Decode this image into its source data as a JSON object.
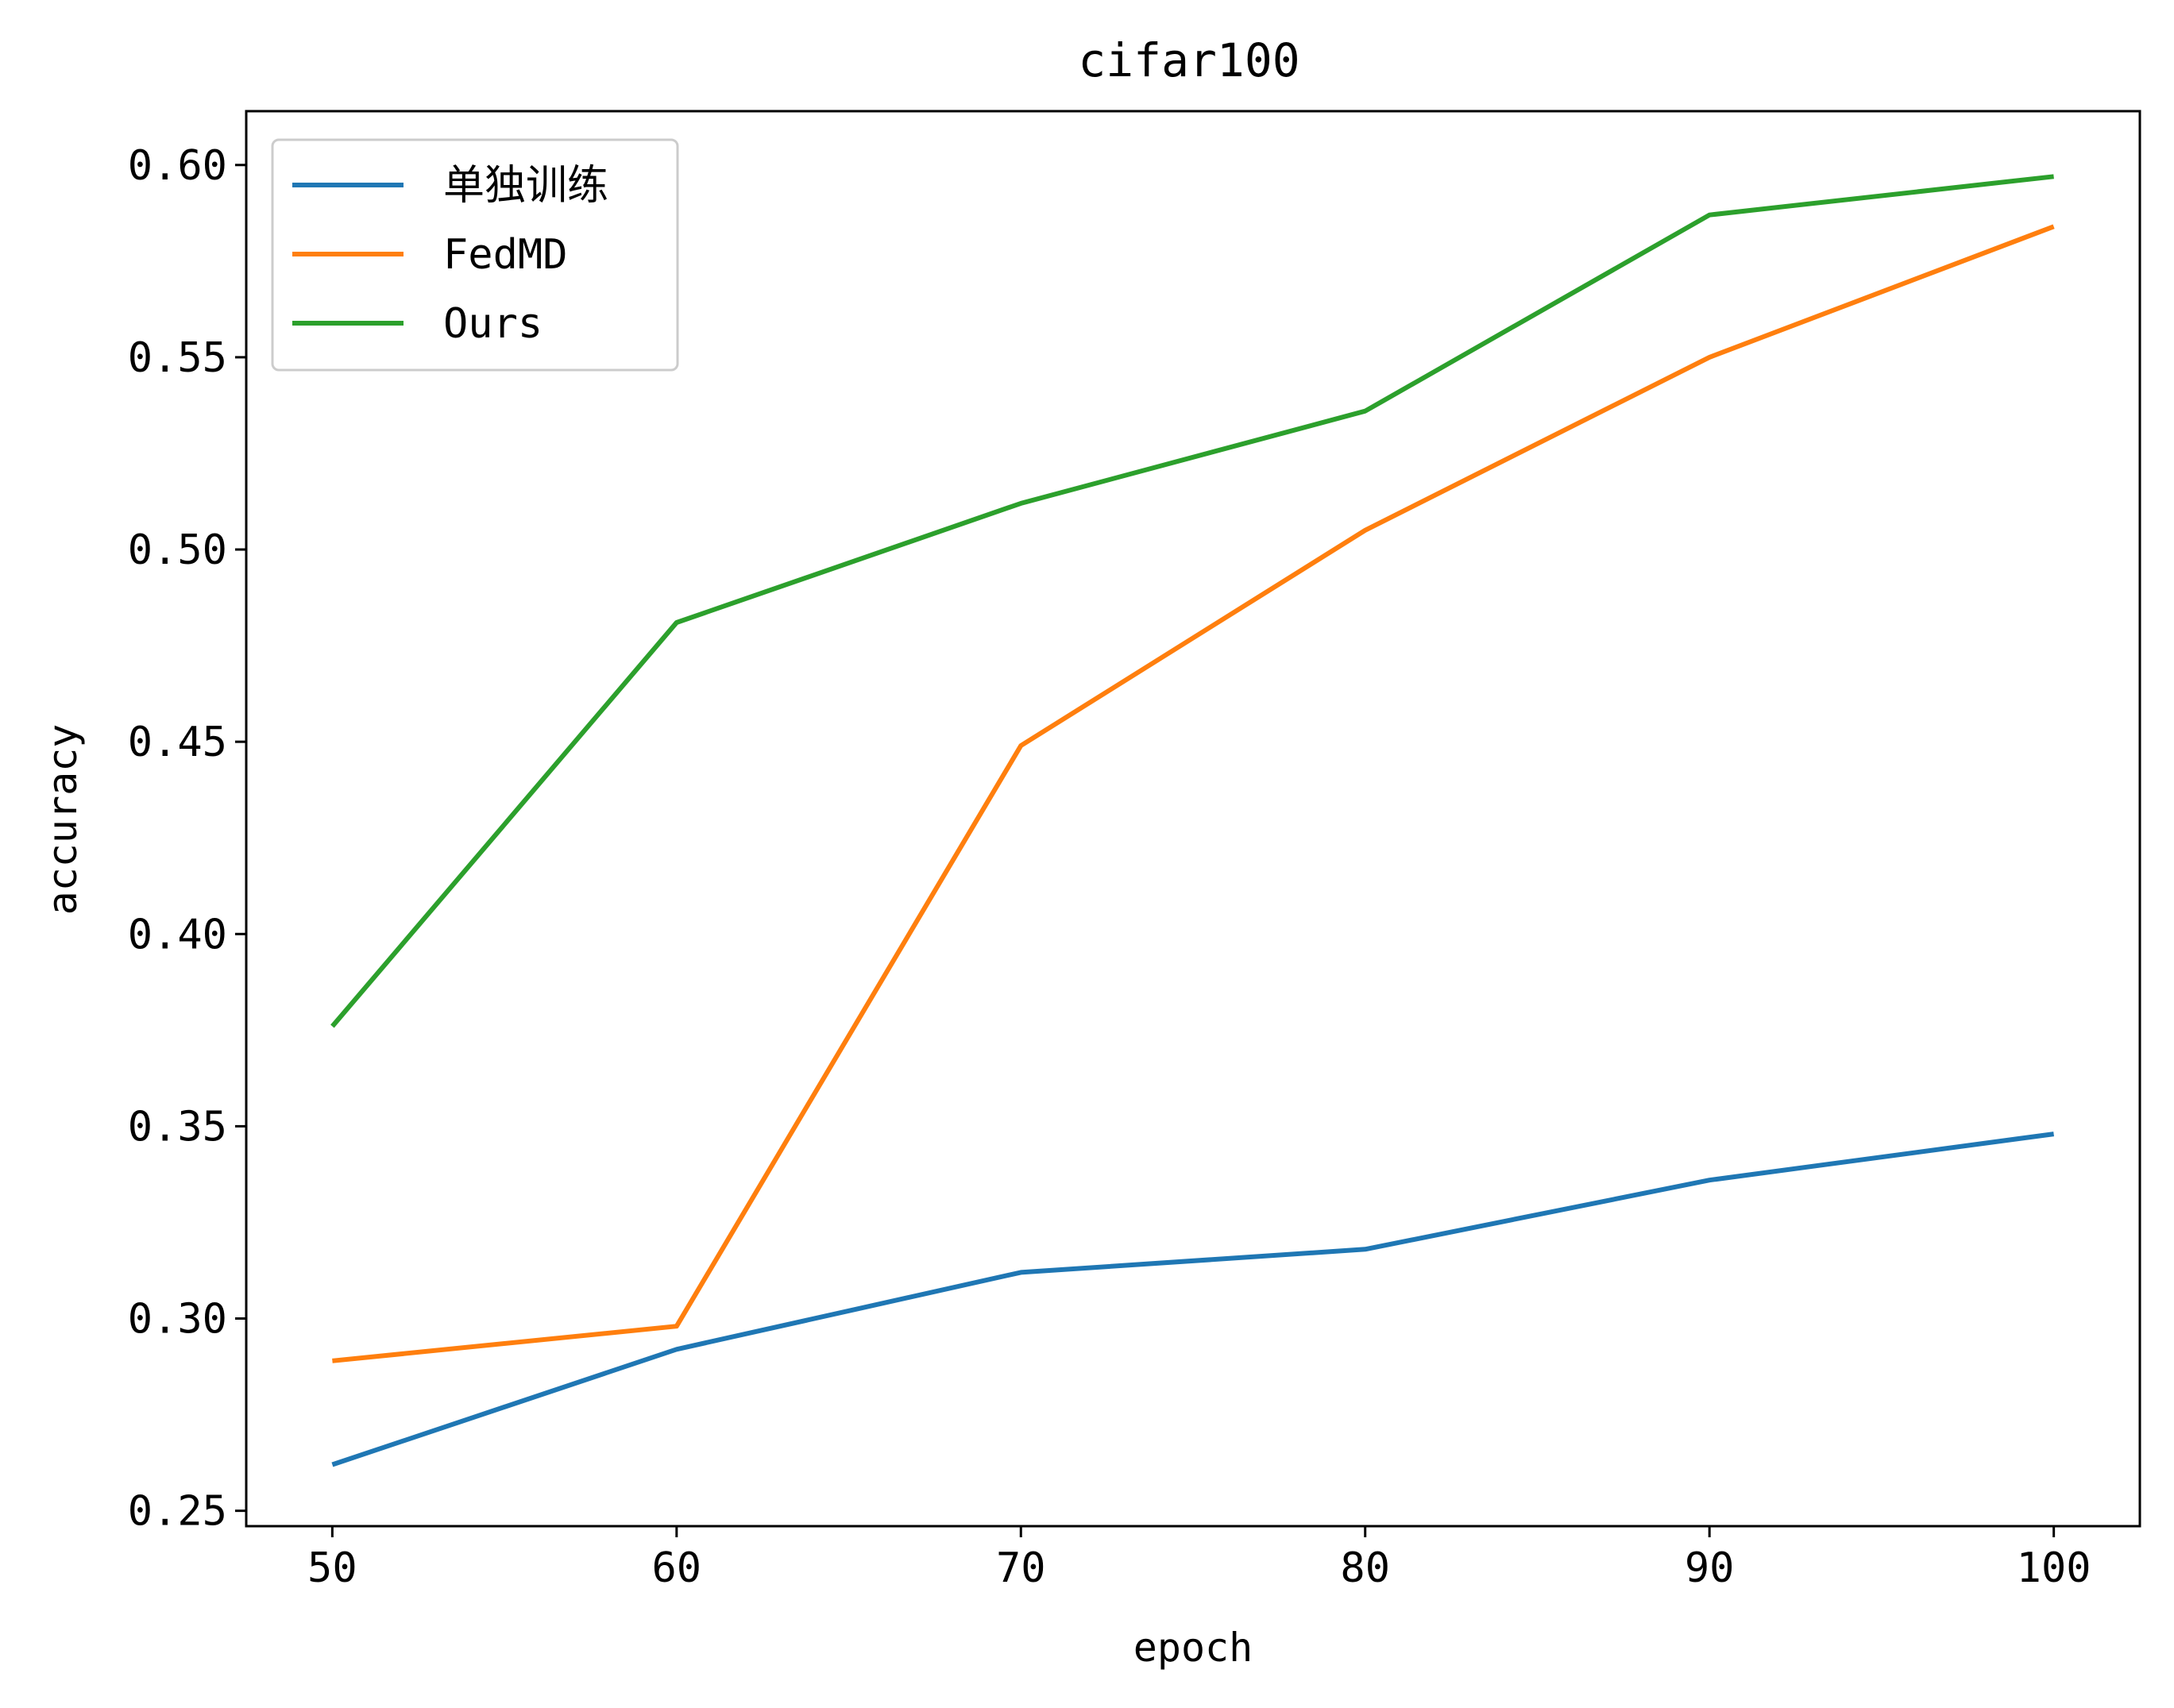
{
  "chart_data": {
    "type": "line",
    "title": "cifar100",
    "xlabel": "epoch",
    "ylabel": "accuracy",
    "x": [
      50,
      60,
      70,
      80,
      90,
      100
    ],
    "xticks": [
      "50",
      "60",
      "70",
      "80",
      "90",
      "100"
    ],
    "yticks": [
      "0.25",
      "0.30",
      "0.35",
      "0.40",
      "0.45",
      "0.50",
      "0.55",
      "0.60"
    ],
    "ytick_values": [
      0.25,
      0.3,
      0.35,
      0.4,
      0.45,
      0.5,
      0.55,
      0.6
    ],
    "xlim": [
      47.5,
      102.5
    ],
    "ylim": [
      0.246,
      0.614
    ],
    "grid": false,
    "legend_position": "upper-left",
    "series": [
      {
        "name": "单独训练",
        "color": "#1f77b4",
        "values": [
          0.262,
          0.292,
          0.312,
          0.318,
          0.336,
          0.348
        ]
      },
      {
        "name": "FedMD",
        "color": "#ff7f0e",
        "values": [
          0.289,
          0.298,
          0.449,
          0.505,
          0.55,
          0.584
        ]
      },
      {
        "name": "Ours",
        "color": "#2ca02c",
        "values": [
          0.376,
          0.481,
          0.512,
          0.536,
          0.587,
          0.597
        ]
      }
    ]
  }
}
